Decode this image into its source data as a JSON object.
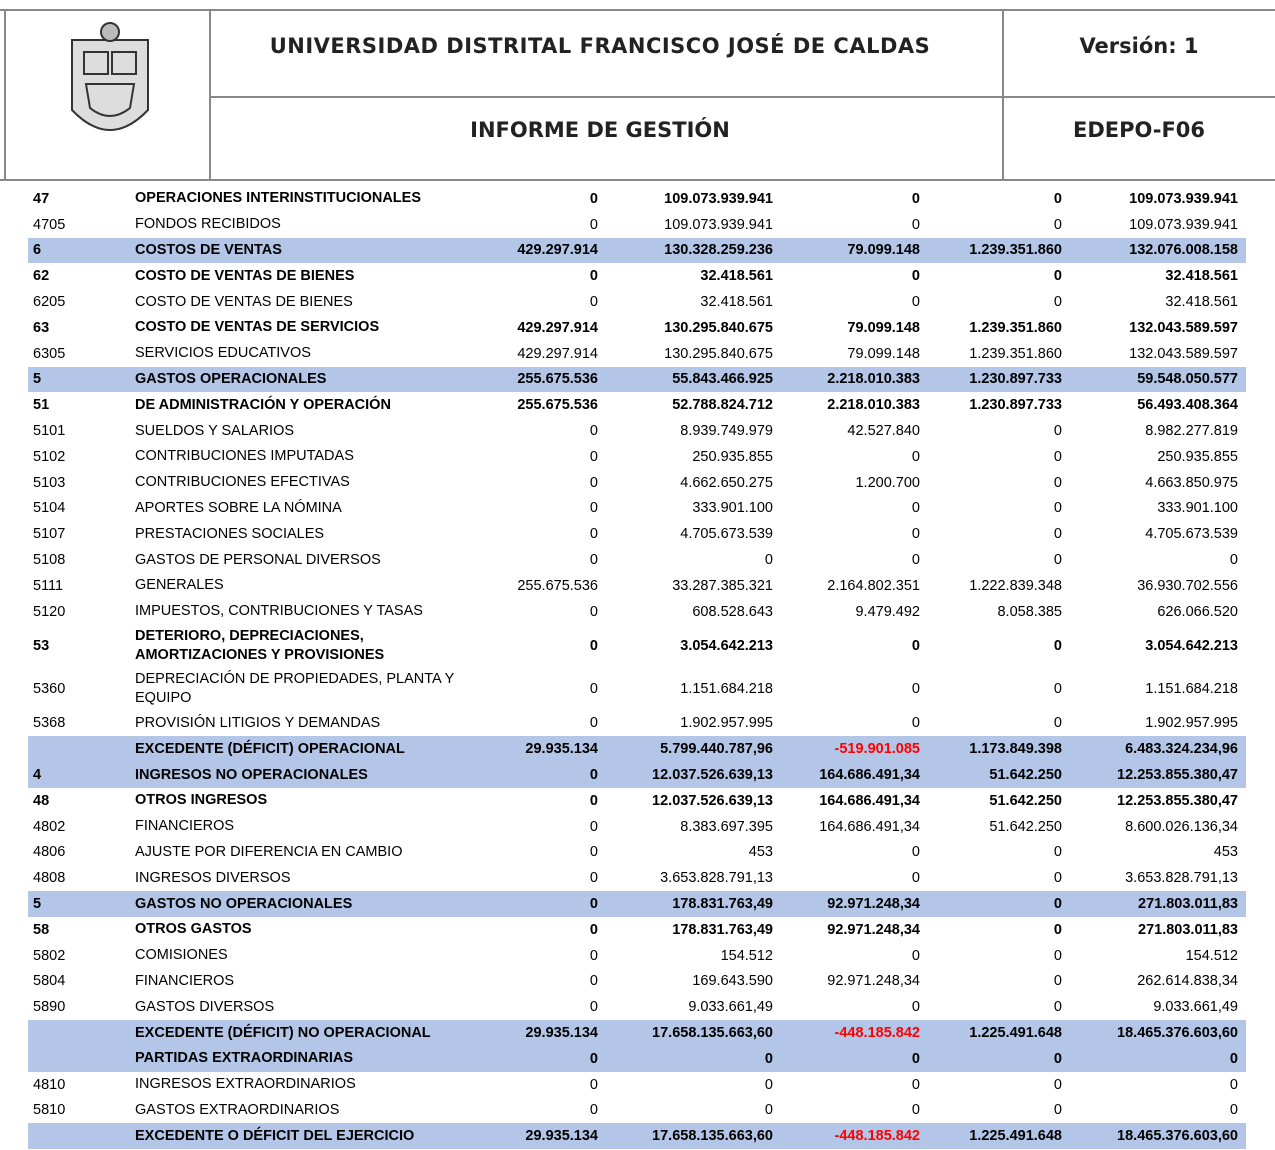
{
  "header": {
    "title": "UNIVERSIDAD DISTRITAL FRANCISCO JOSÉ DE CALDAS",
    "version": "Versión: 1",
    "subtitle": "INFORME DE GESTIÓN",
    "code": "EDEPO-F06"
  },
  "table": {
    "rows": [
      {
        "cells": [
          "47",
          "OPERACIONES INTERINSTITUCIONALES",
          "0",
          "109.073.939.941",
          "0",
          "0",
          "109.073.939.941"
        ],
        "bold": true,
        "highlight": false
      },
      {
        "cells": [
          "4705",
          "FONDOS RECIBIDOS",
          "0",
          "109.073.939.941",
          "0",
          "0",
          "109.073.939.941"
        ],
        "bold": false,
        "highlight": false
      },
      {
        "cells": [
          "6",
          "COSTOS DE VENTAS",
          "429.297.914",
          "130.328.259.236",
          "79.099.148",
          "1.239.351.860",
          "132.076.008.158"
        ],
        "bold": true,
        "highlight": true
      },
      {
        "cells": [
          "62",
          "COSTO DE VENTAS DE BIENES",
          "0",
          "32.418.561",
          "0",
          "0",
          "32.418.561"
        ],
        "bold": true,
        "highlight": false
      },
      {
        "cells": [
          "6205",
          "COSTO DE VENTAS DE BIENES",
          "0",
          "32.418.561",
          "0",
          "0",
          "32.418.561"
        ],
        "bold": false,
        "highlight": false
      },
      {
        "cells": [
          "63",
          "COSTO DE VENTAS DE SERVICIOS",
          "429.297.914",
          "130.295.840.675",
          "79.099.148",
          "1.239.351.860",
          "132.043.589.597"
        ],
        "bold": true,
        "highlight": false
      },
      {
        "cells": [
          "6305",
          "SERVICIOS EDUCATIVOS",
          "429.297.914",
          "130.295.840.675",
          "79.099.148",
          "1.239.351.860",
          "132.043.589.597"
        ],
        "bold": false,
        "highlight": false
      },
      {
        "cells": [
          "5",
          "GASTOS OPERACIONALES",
          "255.675.536",
          "55.843.466.925",
          "2.218.010.383",
          "1.230.897.733",
          "59.548.050.577"
        ],
        "bold": true,
        "highlight": true
      },
      {
        "cells": [
          "51",
          "DE ADMINISTRACIÓN Y OPERACIÓN",
          "255.675.536",
          "52.788.824.712",
          "2.218.010.383",
          "1.230.897.733",
          "56.493.408.364"
        ],
        "bold": true,
        "highlight": false
      },
      {
        "cells": [
          "5101",
          "SUELDOS Y SALARIOS",
          "0",
          "8.939.749.979",
          "42.527.840",
          "0",
          "8.982.277.819"
        ],
        "bold": false,
        "highlight": false
      },
      {
        "cells": [
          "5102",
          "CONTRIBUCIONES IMPUTADAS",
          "0",
          "250.935.855",
          "0",
          "0",
          "250.935.855"
        ],
        "bold": false,
        "highlight": false
      },
      {
        "cells": [
          "5103",
          "CONTRIBUCIONES EFECTIVAS",
          "0",
          "4.662.650.275",
          "1.200.700",
          "0",
          "4.663.850.975"
        ],
        "bold": false,
        "highlight": false
      },
      {
        "cells": [
          "5104",
          "APORTES SOBRE LA NÓMINA",
          "0",
          "333.901.100",
          "0",
          "0",
          "333.901.100"
        ],
        "bold": false,
        "highlight": false
      },
      {
        "cells": [
          "5107",
          "PRESTACIONES SOCIALES",
          "0",
          "4.705.673.539",
          "0",
          "0",
          "4.705.673.539"
        ],
        "bold": false,
        "highlight": false
      },
      {
        "cells": [
          "5108",
          "GASTOS DE PERSONAL DIVERSOS",
          "0",
          "0",
          "0",
          "0",
          "0"
        ],
        "bold": false,
        "highlight": false
      },
      {
        "cells": [
          "5111",
          "GENERALES",
          "255.675.536",
          "33.287.385.321",
          "2.164.802.351",
          "1.222.839.348",
          "36.930.702.556"
        ],
        "bold": false,
        "highlight": false
      },
      {
        "cells": [
          "5120",
          "IMPUESTOS, CONTRIBUCIONES Y TASAS",
          "0",
          "608.528.643",
          "9.479.492",
          "8.058.385",
          "626.066.520"
        ],
        "bold": false,
        "highlight": false
      },
      {
        "cells": [
          "53",
          "DETERIORO, DEPRECIACIONES, AMORTIZACIONES Y PROVISIONES",
          "0",
          "3.054.642.213",
          "0",
          "0",
          "3.054.642.213"
        ],
        "bold": true,
        "highlight": false
      },
      {
        "cells": [
          "5360",
          "DEPRECIACIÓN DE PROPIEDADES, PLANTA Y EQUIPO",
          "0",
          "1.151.684.218",
          "0",
          "0",
          "1.151.684.218"
        ],
        "bold": false,
        "highlight": false
      },
      {
        "cells": [
          "5368",
          "PROVISIÓN LITIGIOS Y DEMANDAS",
          "0",
          "1.902.957.995",
          "0",
          "0",
          "1.902.957.995"
        ],
        "bold": false,
        "highlight": false
      },
      {
        "cells": [
          "",
          "EXCEDENTE (DÉFICIT) OPERACIONAL",
          "29.935.134",
          "5.799.440.787,96",
          "-519.901.085",
          "1.173.849.398",
          "6.483.324.234,96"
        ],
        "bold": true,
        "highlight": true
      },
      {
        "cells": [
          "4",
          "INGRESOS NO OPERACIONALES",
          "0",
          "12.037.526.639,13",
          "164.686.491,34",
          "51.642.250",
          "12.253.855.380,47"
        ],
        "bold": true,
        "highlight": true
      },
      {
        "cells": [
          "48",
          "OTROS INGRESOS",
          "0",
          "12.037.526.639,13",
          "164.686.491,34",
          "51.642.250",
          "12.253.855.380,47"
        ],
        "bold": true,
        "highlight": false
      },
      {
        "cells": [
          "4802",
          "FINANCIEROS",
          "0",
          "8.383.697.395",
          "164.686.491,34",
          "51.642.250",
          "8.600.026.136,34"
        ],
        "bold": false,
        "highlight": false
      },
      {
        "cells": [
          "4806",
          "AJUSTE POR DIFERENCIA EN CAMBIO",
          "0",
          "453",
          "0",
          "0",
          "453"
        ],
        "bold": false,
        "highlight": false
      },
      {
        "cells": [
          "4808",
          "INGRESOS DIVERSOS",
          "0",
          "3.653.828.791,13",
          "0",
          "0",
          "3.653.828.791,13"
        ],
        "bold": false,
        "highlight": false
      },
      {
        "cells": [
          "5",
          "GASTOS NO OPERACIONALES",
          "0",
          "178.831.763,49",
          "92.971.248,34",
          "0",
          "271.803.011,83"
        ],
        "bold": true,
        "highlight": true
      },
      {
        "cells": [
          "58",
          "OTROS GASTOS",
          "0",
          "178.831.763,49",
          "92.971.248,34",
          "0",
          "271.803.011,83"
        ],
        "bold": true,
        "highlight": false
      },
      {
        "cells": [
          "5802",
          "COMISIONES",
          "0",
          "154.512",
          "0",
          "0",
          "154.512"
        ],
        "bold": false,
        "highlight": false
      },
      {
        "cells": [
          "5804",
          "FINANCIEROS",
          "0",
          "169.643.590",
          "92.971.248,34",
          "0",
          "262.614.838,34"
        ],
        "bold": false,
        "highlight": false
      },
      {
        "cells": [
          "5890",
          "GASTOS DIVERSOS",
          "0",
          "9.033.661,49",
          "0",
          "0",
          "9.033.661,49"
        ],
        "bold": false,
        "highlight": false
      },
      {
        "cells": [
          "",
          "EXCEDENTE (DÉFICIT) NO OPERACIONAL",
          "29.935.134",
          "17.658.135.663,60",
          "-448.185.842",
          "1.225.491.648",
          "18.465.376.603,60"
        ],
        "bold": true,
        "highlight": true
      },
      {
        "cells": [
          "",
          "PARTIDAS EXTRAORDINARIAS",
          "0",
          "0",
          "0",
          "0",
          "0"
        ],
        "bold": true,
        "highlight": true
      },
      {
        "cells": [
          "4810",
          "INGRESOS EXTRAORDINARIOS",
          "0",
          "0",
          "0",
          "0",
          "0"
        ],
        "bold": false,
        "highlight": false
      },
      {
        "cells": [
          "5810",
          "GASTOS EXTRAORDINARIOS",
          "0",
          "0",
          "0",
          "0",
          "0"
        ],
        "bold": false,
        "highlight": false
      },
      {
        "cells": [
          "",
          "EXCEDENTE O DÉFICIT DEL EJERCICIO",
          "29.935.134",
          "17.658.135.663,60",
          "-448.185.842",
          "1.225.491.648",
          "18.465.376.603,60"
        ],
        "bold": true,
        "highlight": true
      }
    ],
    "highlight_color": "#b4c6e7",
    "negative_color": "#ff0000"
  }
}
